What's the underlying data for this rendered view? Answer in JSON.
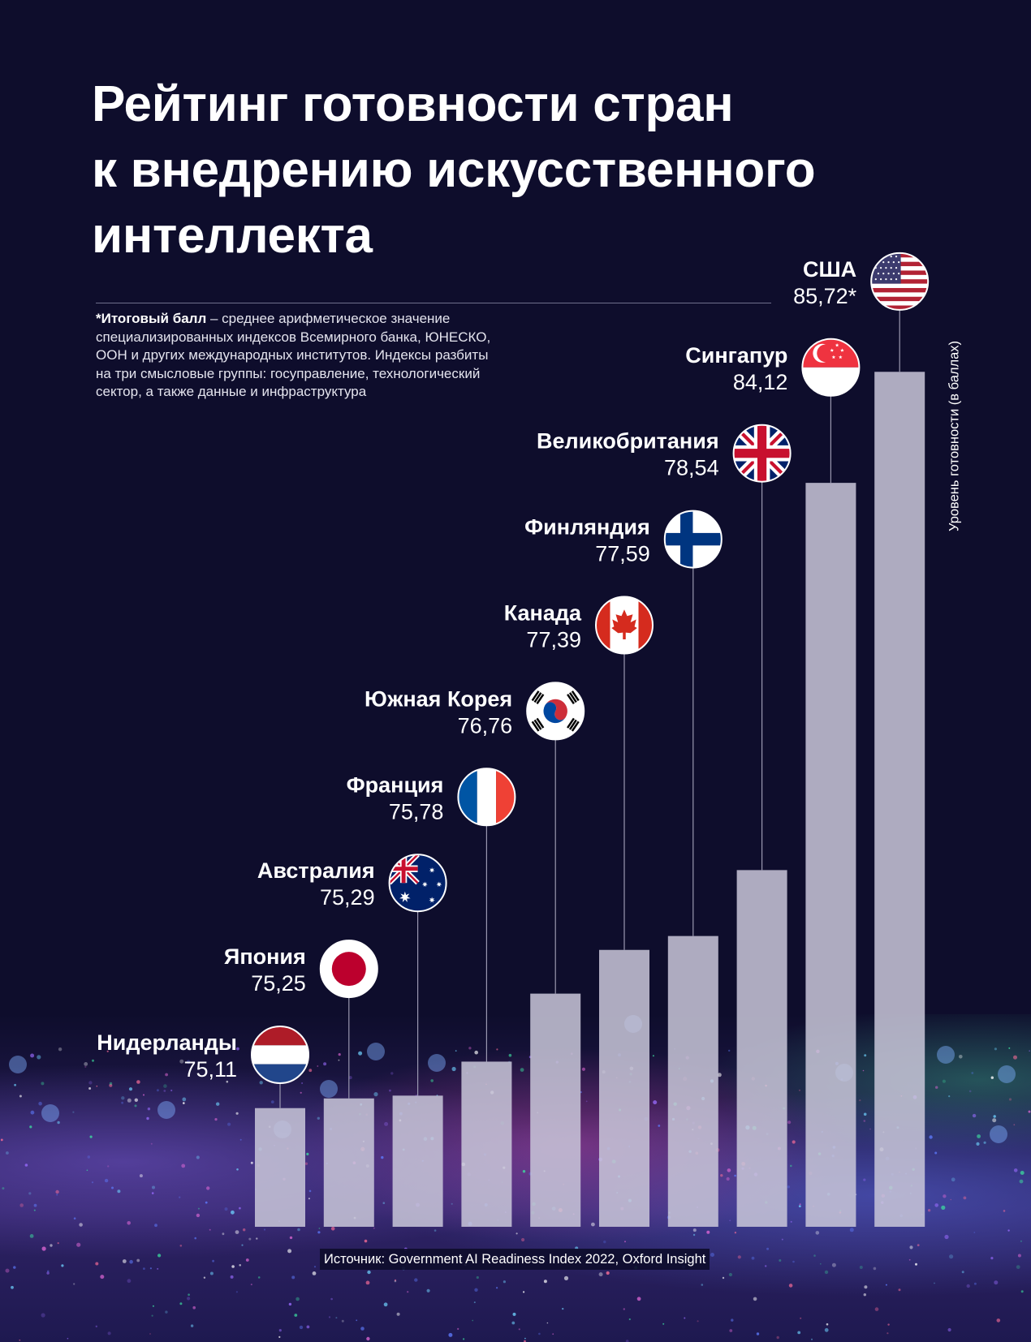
{
  "title_lines": [
    "Рейтинг готовности стран",
    "к внедрению искусственного",
    "интеллекта"
  ],
  "footnote": {
    "bold": "*Итоговый балл",
    "text": " – среднее арифметическое значение специализированных индексов Всемирного банка, ЮНЕСКО, ООН и других международных институтов. Индексы разбиты на три смысловые группы: госуправление, технологический сектор, а также данные и инфраструктура"
  },
  "source": "Источник: Government AI Readiness Index 2022, Oxford Insight",
  "colors": {
    "background": "#0e0d2c",
    "bar": "#c8c6d8",
    "line": "#9a98b0",
    "text": "#ffffff"
  },
  "chart_data": {
    "type": "bar",
    "title": "Рейтинг готовности стран к внедрению искусственного интеллекта",
    "ylabel": "Уровень готовности (в баллах)",
    "xlabel": "",
    "categories": [
      "Нидерланды",
      "Япония",
      "Австралия",
      "Франция",
      "Южная Корея",
      "Канада",
      "Финляндия",
      "Великобритания",
      "Сингапур",
      "США"
    ],
    "value_labels": [
      "75,11",
      "75,25",
      "75,29",
      "75,78",
      "76,76",
      "77,39",
      "77,59",
      "78,54",
      "84,12",
      "85,72*"
    ],
    "values": [
      75.11,
      75.25,
      75.29,
      75.78,
      76.76,
      77.39,
      77.59,
      78.54,
      84.12,
      85.72
    ],
    "flags": [
      "flag-netherlands",
      "flag-japan",
      "flag-australia",
      "flag-france",
      "flag-south-korea",
      "flag-canada",
      "flag-finland",
      "flag-uk",
      "flag-singapore",
      "flag-usa"
    ],
    "grid": false,
    "legend": "none"
  }
}
